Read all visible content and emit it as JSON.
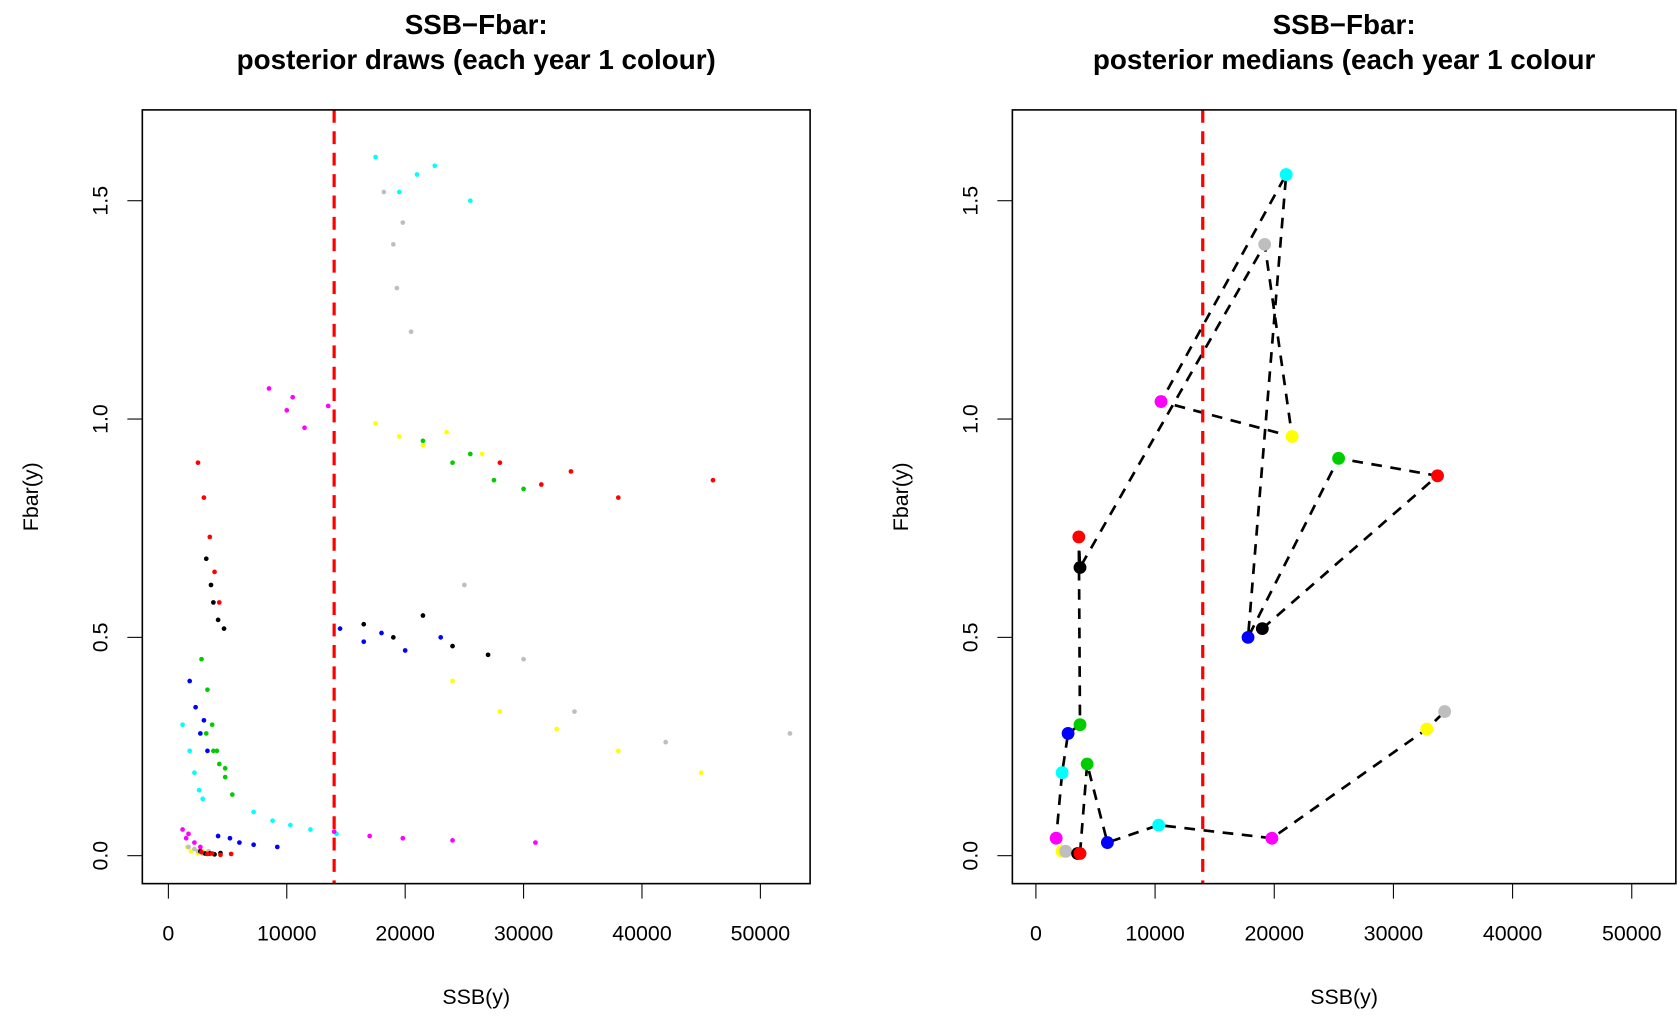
{
  "chart_data": [
    {
      "type": "scatter",
      "title": "SSB−Fbar:",
      "subtitle": "posterior draws (each year 1 colour)",
      "xlabel": "SSB(y)",
      "ylabel": "Fbar(y)",
      "xlim": [
        -2200,
        54200
      ],
      "ylim": [
        -0.064,
        1.708
      ],
      "xticks": [
        0,
        10000,
        20000,
        30000,
        40000,
        50000
      ],
      "yticks": [
        {
          "value": 0,
          "label": "0.0"
        },
        {
          "value": 0.5,
          "label": "0.5"
        },
        {
          "value": 1,
          "label": "1.0"
        },
        {
          "value": 1.5,
          "label": "1.5"
        }
      ],
      "vline": 14000,
      "vline_color": "#ff0000",
      "series": [
        {
          "color": "#000000",
          "x": [
            16500,
            19000,
            21500,
            24000,
            27000
          ],
          "y": [
            0.53,
            0.5,
            0.55,
            0.48,
            0.46
          ]
        },
        {
          "color": "#ff0000",
          "x": [
            28000,
            31500,
            34000,
            38000,
            46000
          ],
          "y": [
            0.9,
            0.85,
            0.88,
            0.82,
            0.86
          ]
        },
        {
          "color": "#00cd00",
          "x": [
            21500,
            24000,
            25500,
            27500,
            30000
          ],
          "y": [
            0.95,
            0.9,
            0.92,
            0.86,
            0.84
          ]
        },
        {
          "color": "#0000ff",
          "x": [
            14500,
            16500,
            18000,
            20000,
            23000
          ],
          "y": [
            0.52,
            0.49,
            0.51,
            0.47,
            0.5
          ]
        },
        {
          "color": "#00ffff",
          "x": [
            17500,
            19500,
            21000,
            22500,
            25500
          ],
          "y": [
            1.6,
            1.52,
            1.56,
            1.58,
            1.5
          ]
        },
        {
          "color": "#ff00ff",
          "x": [
            8500,
            10000,
            10500,
            11500,
            13500
          ],
          "y": [
            1.07,
            1.02,
            1.05,
            0.98,
            1.03
          ]
        },
        {
          "color": "#ffff00",
          "x": [
            17500,
            19500,
            21500,
            23500,
            26500
          ],
          "y": [
            0.99,
            0.96,
            0.94,
            0.97,
            0.92
          ]
        },
        {
          "color": "#bebebe",
          "x": [
            18200,
            19000,
            19300,
            19800,
            20500
          ],
          "y": [
            1.52,
            1.4,
            1.3,
            1.45,
            1.2
          ]
        },
        {
          "color": "#000000",
          "x": [
            3200,
            3600,
            3800,
            4200,
            4700
          ],
          "y": [
            0.68,
            0.62,
            0.58,
            0.54,
            0.52
          ]
        },
        {
          "color": "#ff0000",
          "x": [
            2500,
            3000,
            3500,
            3900,
            4300
          ],
          "y": [
            0.9,
            0.82,
            0.73,
            0.65,
            0.58
          ]
        },
        {
          "color": "#00cd00",
          "x": [
            2800,
            3300,
            3700,
            4100,
            4800
          ],
          "y": [
            0.45,
            0.38,
            0.3,
            0.24,
            0.2
          ]
        },
        {
          "color": "#0000ff",
          "x": [
            1800,
            2300,
            2700,
            3000,
            3300
          ],
          "y": [
            0.4,
            0.34,
            0.28,
            0.31,
            0.24
          ]
        },
        {
          "color": "#00ffff",
          "x": [
            1200,
            1800,
            2200,
            2600,
            2900
          ],
          "y": [
            0.3,
            0.24,
            0.19,
            0.15,
            0.13
          ]
        },
        {
          "color": "#ff00ff",
          "x": [
            1200,
            1500,
            1700,
            2200,
            2700
          ],
          "y": [
            0.06,
            0.04,
            0.05,
            0.03,
            0.02
          ]
        },
        {
          "color": "#ffff00",
          "x": [
            1600,
            1900,
            2200,
            2500,
            2900
          ],
          "y": [
            0.02,
            0.01,
            0.015,
            0.005,
            0.01
          ]
        },
        {
          "color": "#bebebe",
          "x": [
            1700,
            2200,
            2500,
            2900,
            3400
          ],
          "y": [
            0.02,
            0.015,
            0.01,
            0.005,
            0.01
          ]
        },
        {
          "color": "#000000",
          "x": [
            2700,
            3100,
            3500,
            3900,
            4400
          ],
          "y": [
            0.01,
            0.005,
            0.005,
            0.003,
            0.006
          ]
        },
        {
          "color": "#ff0000",
          "x": [
            2800,
            3300,
            3700,
            4400,
            5300
          ],
          "y": [
            0.008,
            0.004,
            0.005,
            0.002,
            0.004
          ]
        },
        {
          "color": "#00cd00",
          "x": [
            3200,
            3800,
            4300,
            4800,
            5400
          ],
          "y": [
            0.28,
            0.24,
            0.21,
            0.18,
            0.14
          ]
        },
        {
          "color": "#0000ff",
          "x": [
            4200,
            5200,
            6000,
            7200,
            9200
          ],
          "y": [
            0.045,
            0.04,
            0.03,
            0.025,
            0.02
          ]
        },
        {
          "color": "#00ffff",
          "x": [
            7200,
            8800,
            10300,
            12000,
            14200
          ],
          "y": [
            0.1,
            0.08,
            0.07,
            0.06,
            0.05
          ]
        },
        {
          "color": "#ff00ff",
          "x": [
            14000,
            17000,
            19800,
            24000,
            31000
          ],
          "y": [
            0.055,
            0.045,
            0.04,
            0.035,
            0.03
          ]
        },
        {
          "color": "#ffff00",
          "x": [
            24000,
            28000,
            32800,
            38000,
            45000
          ],
          "y": [
            0.4,
            0.33,
            0.29,
            0.24,
            0.19
          ]
        },
        {
          "color": "#bebebe",
          "x": [
            25000,
            30000,
            34300,
            42000,
            52500
          ],
          "y": [
            0.62,
            0.45,
            0.33,
            0.26,
            0.28
          ]
        }
      ]
    },
    {
      "type": "line",
      "title": "SSB−Fbar:",
      "subtitle": "posterior medians (each year 1 colour",
      "xlabel": "SSB(y)",
      "ylabel": "Fbar(y)",
      "xlim": [
        -1975,
        53700
      ],
      "ylim": [
        -0.064,
        1.708
      ],
      "xticks": [
        0,
        10000,
        20000,
        30000,
        40000,
        50000
      ],
      "yticks": [
        {
          "value": 0,
          "label": "0.0"
        },
        {
          "value": 0.5,
          "label": "0.5"
        },
        {
          "value": 1,
          "label": "1.0"
        },
        {
          "value": 1.5,
          "label": "1.5"
        }
      ],
      "vline": 14000,
      "vline_color": "#ff0000",
      "line_color": "#000000",
      "line_style": "dashed",
      "x": [
        19000,
        33700,
        25400,
        17800,
        21000,
        10500,
        21500,
        19200,
        3700,
        3600,
        3700,
        2700,
        2200,
        1700,
        2200,
        2500,
        3500,
        3700,
        4300,
        6000,
        10300,
        19800,
        32800,
        34300
      ],
      "y": [
        0.52,
        0.87,
        0.91,
        0.5,
        1.56,
        1.04,
        0.96,
        1.4,
        0.66,
        0.73,
        0.3,
        0.28,
        0.19,
        0.04,
        0.01,
        0.01,
        0.005,
        0.005,
        0.21,
        0.03,
        0.07,
        0.04,
        0.29,
        0.33
      ],
      "colors": [
        "#000000",
        "#ff0000",
        "#00cd00",
        "#0000ff",
        "#00ffff",
        "#ff00ff",
        "#ffff00",
        "#bebebe",
        "#000000",
        "#ff0000",
        "#00cd00",
        "#0000ff",
        "#00ffff",
        "#ff00ff",
        "#ffff00",
        "#bebebe",
        "#000000",
        "#ff0000",
        "#00cd00",
        "#0000ff",
        "#00ffff",
        "#ff00ff",
        "#ffff00",
        "#bebebe"
      ]
    }
  ]
}
